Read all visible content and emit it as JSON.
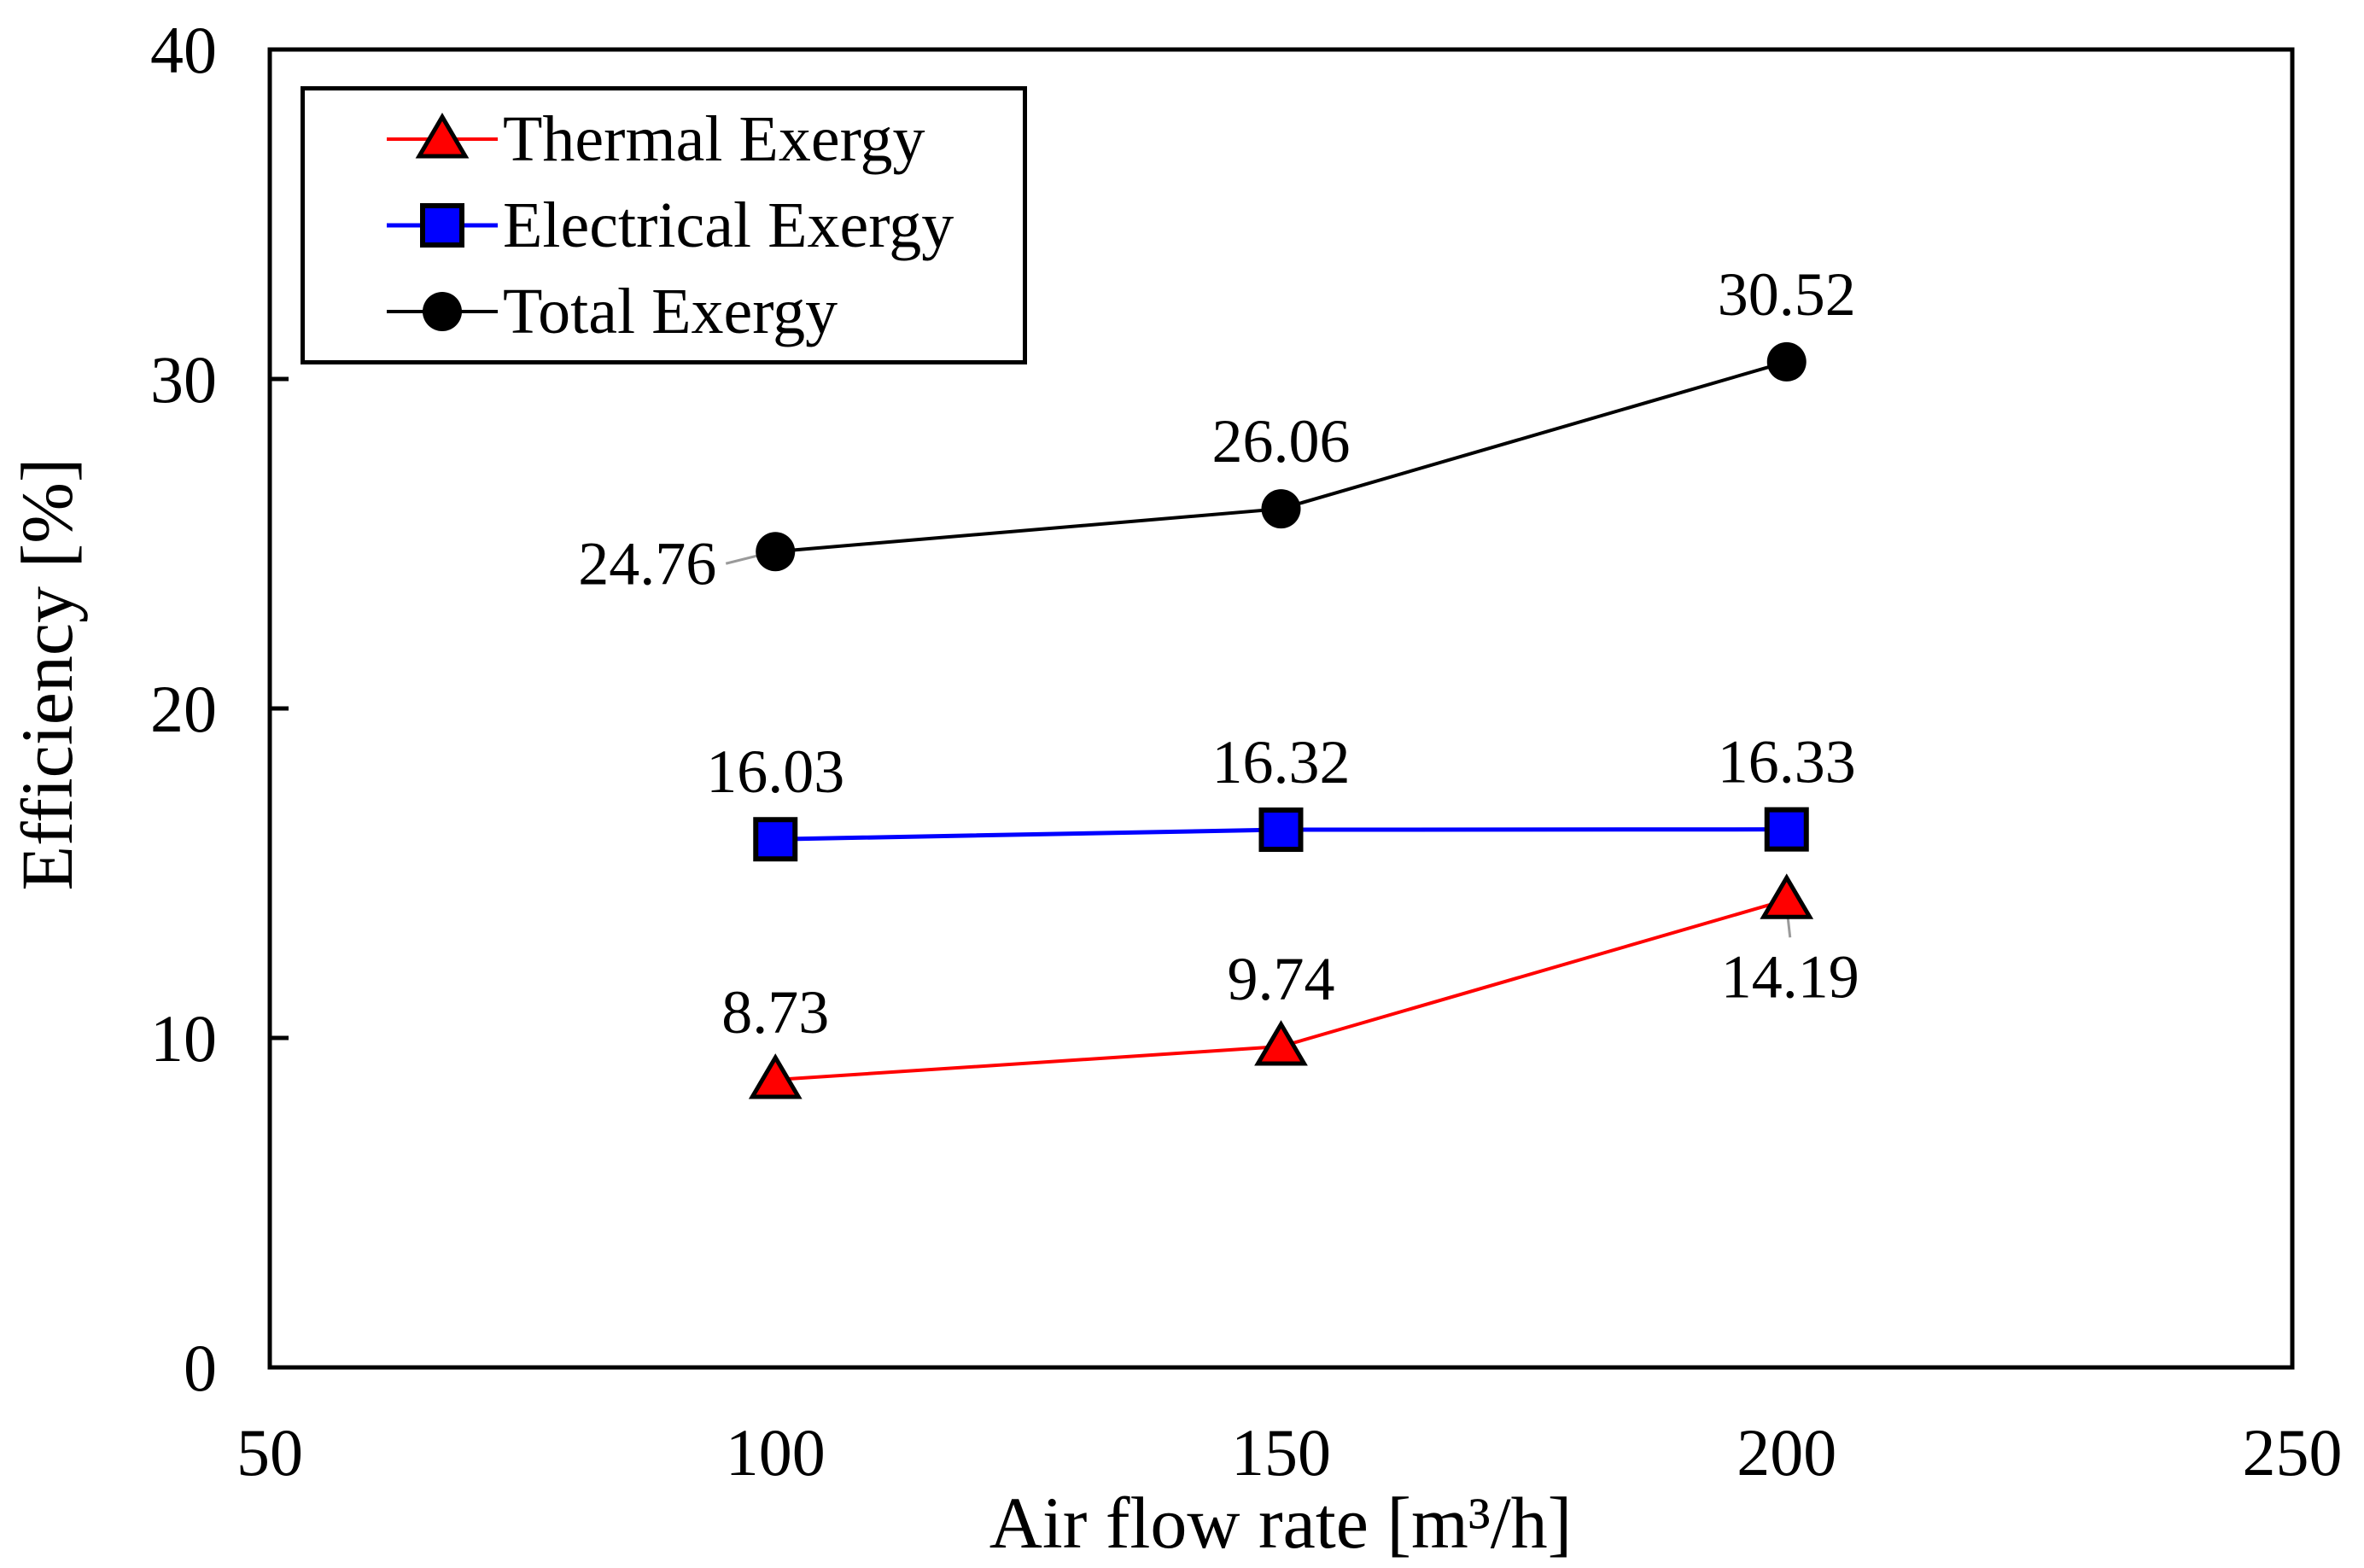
{
  "chart_data": {
    "type": "line",
    "title": "",
    "xlabel": "Air flow rate [m³/h]",
    "ylabel": "Efficiency [%]",
    "xlim": [
      50,
      250
    ],
    "ylim": [
      0,
      40
    ],
    "xticks": [
      50,
      100,
      150,
      200,
      250
    ],
    "yticks": [
      0,
      10,
      20,
      30,
      40
    ],
    "grid": false,
    "legend_position": "top-left",
    "x": [
      100,
      150,
      200
    ],
    "series": [
      {
        "name": "Thermal Exergy",
        "marker": "triangle",
        "color": "#ff0000",
        "values": [
          8.73,
          9.74,
          14.19
        ],
        "labels": [
          "8.73",
          "9.74",
          "14.19"
        ],
        "label_positions": [
          "above",
          "above",
          "below-leader"
        ]
      },
      {
        "name": "Electrical Exergy",
        "marker": "square",
        "color": "#0000ff",
        "values": [
          16.03,
          16.32,
          16.33
        ],
        "labels": [
          "16.03",
          "16.32",
          "16.33"
        ],
        "label_positions": [
          "above",
          "above",
          "above"
        ]
      },
      {
        "name": "Total Exergy",
        "marker": "circle",
        "color": "#000000",
        "values": [
          24.76,
          26.06,
          30.52
        ],
        "labels": [
          "24.76",
          "26.06",
          "30.52"
        ],
        "label_positions": [
          "left-leader",
          "above",
          "above"
        ]
      }
    ]
  },
  "leader_color": "#9a9a9a"
}
